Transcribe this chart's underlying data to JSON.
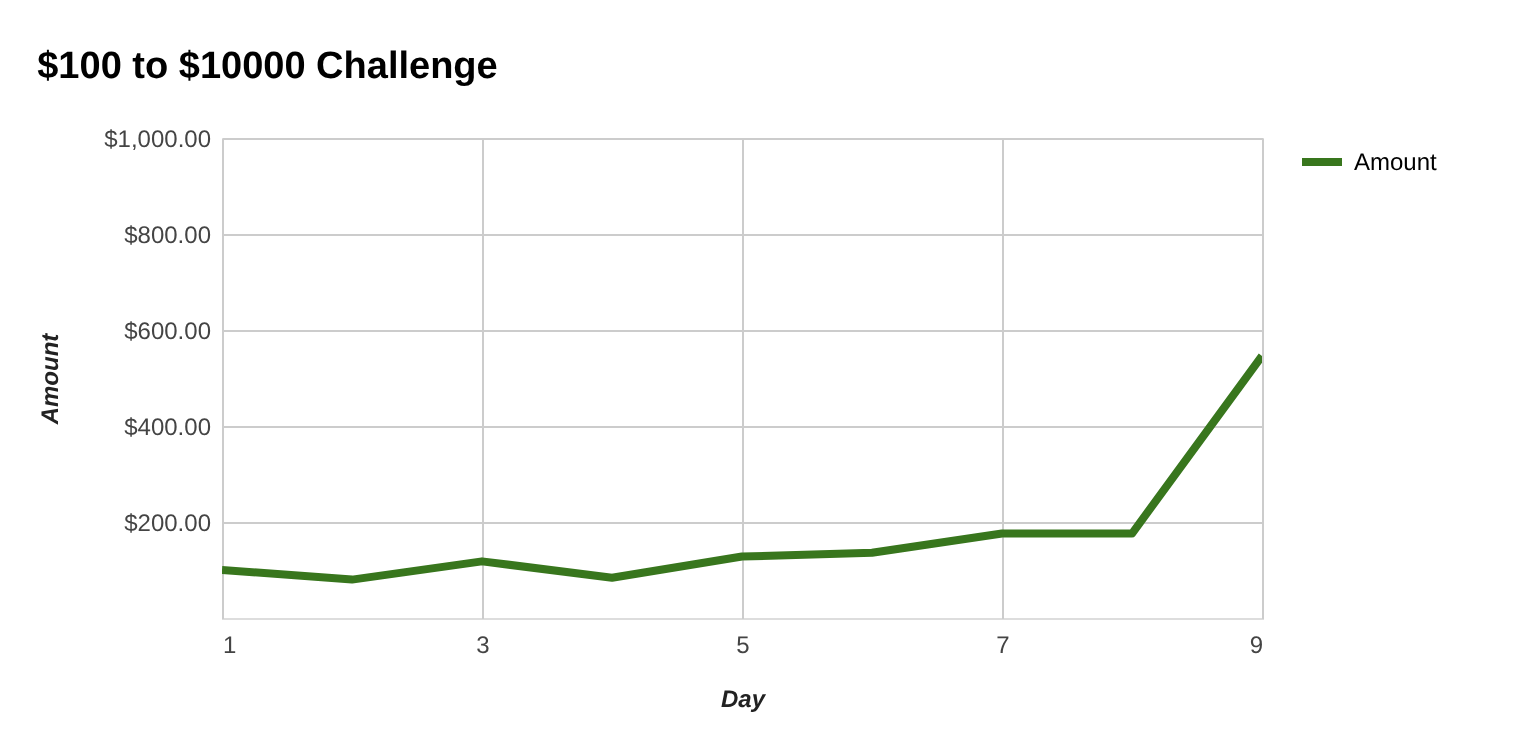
{
  "chart_data": {
    "type": "line",
    "title": "$100 to $10000 Challenge",
    "xlabel": "Day",
    "ylabel": "Amount",
    "x": [
      1,
      2,
      3,
      4,
      5,
      6,
      7,
      8,
      9
    ],
    "series": [
      {
        "name": "Amount",
        "color": "#38761d",
        "values": [
          100,
          80,
          118,
          84,
          128,
          136,
          176,
          176,
          546
        ]
      }
    ],
    "xlim": [
      1,
      9
    ],
    "xticks": [
      1,
      3,
      5,
      7,
      9
    ],
    "ylim": [
      0,
      1000
    ],
    "yticks": [
      {
        "value": 200,
        "label": "$200.00"
      },
      {
        "value": 400,
        "label": "$400.00"
      },
      {
        "value": 600,
        "label": "$600.00"
      },
      {
        "value": 800,
        "label": "$800.00"
      },
      {
        "value": 1000,
        "label": "$1,000.00"
      }
    ],
    "grid": true,
    "legend": "top right",
    "marker": "none",
    "line_style": "solid"
  }
}
